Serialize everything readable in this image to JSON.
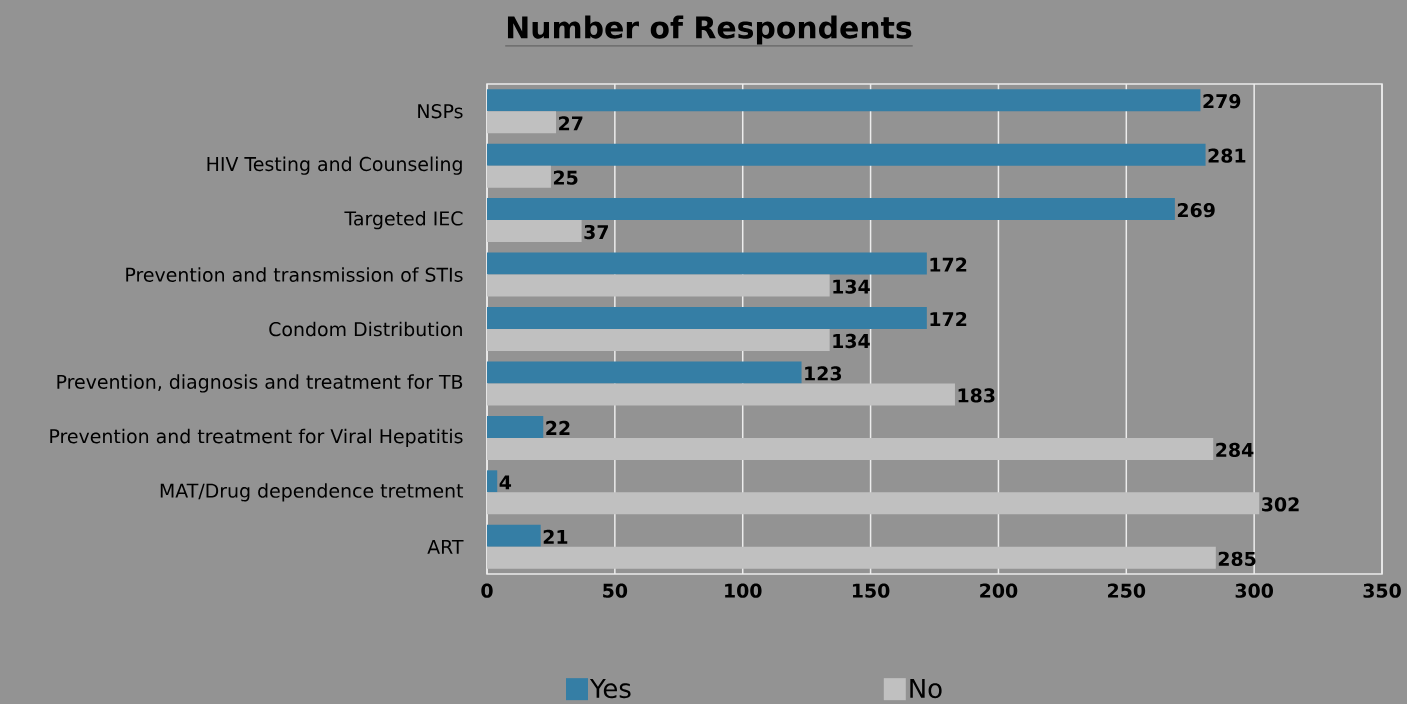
{
  "chart_data": {
    "type": "bar",
    "orientation": "horizontal",
    "title": "Number of Respondents",
    "categories": [
      "NSPs",
      "HIV Testing and Counseling",
      "Targeted IEC",
      "Prevention and transmission of STIs",
      "Condom Distribution",
      "Prevention, diagnosis and treatment for TB",
      "Prevention and treatment for Viral Hepatitis",
      "MAT/Drug dependence tretment",
      "ART"
    ],
    "series": [
      {
        "name": "Yes",
        "color": "#357ea5",
        "values": [
          279,
          281,
          269,
          172,
          172,
          123,
          22,
          4,
          21
        ]
      },
      {
        "name": "No",
        "color": "#c0c0c0",
        "values": [
          27,
          25,
          37,
          134,
          134,
          183,
          284,
          302,
          285
        ]
      }
    ],
    "xlim": [
      0,
      350
    ],
    "xticks": [
      0,
      50,
      100,
      150,
      200,
      250,
      300,
      350
    ],
    "grid": "x",
    "legend": "bottom",
    "data_labels": true
  }
}
